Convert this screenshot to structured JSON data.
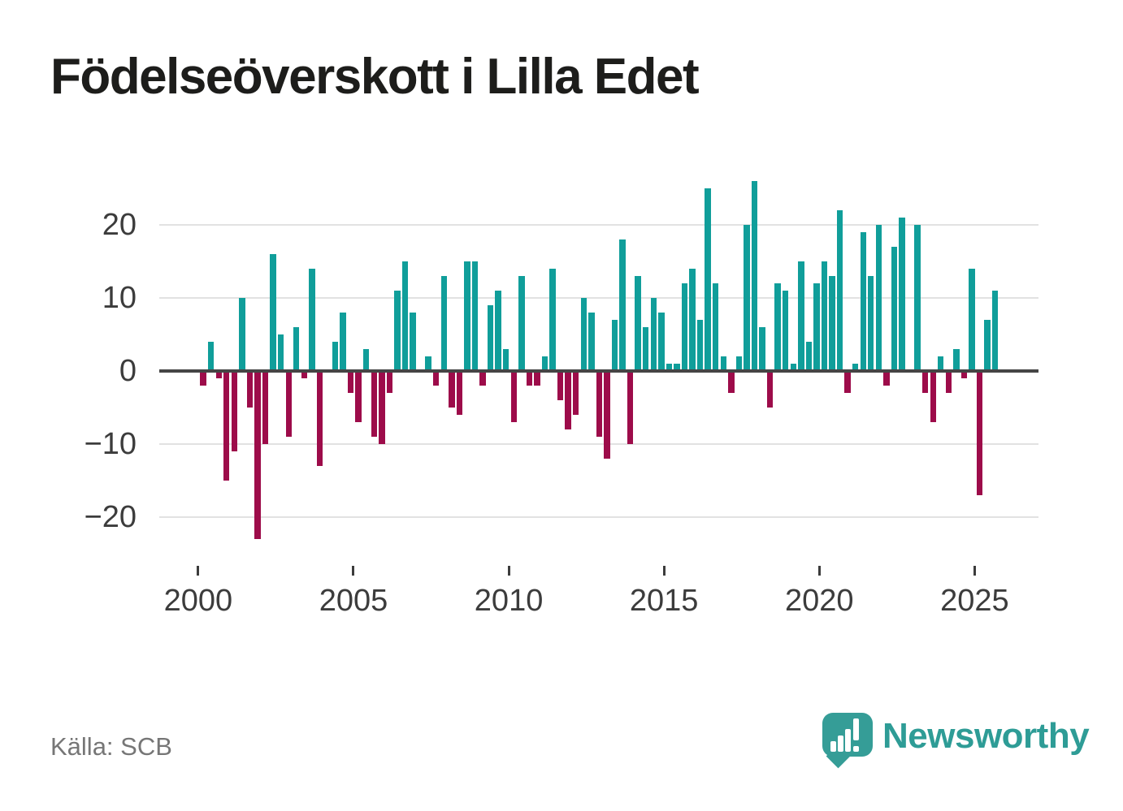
{
  "title": "Födelseöverskott i Lilla Edet",
  "source": {
    "label": "Källa: SCB"
  },
  "logo": {
    "text": "Newsworthy",
    "text_color": "#2e9c96",
    "bubble_color": "#359d97"
  },
  "chart_data": {
    "type": "bar",
    "title": "Födelseöverskott i Lilla Edet",
    "frequency": "quarterly",
    "x_start": "2000-Q1",
    "x_end": "2025-Q3",
    "values": [
      -2,
      4,
      -1,
      -15,
      -11,
      10,
      -5,
      -23,
      -10,
      16,
      5,
      -9,
      6,
      -1,
      14,
      -13,
      0,
      4,
      8,
      -3,
      -7,
      3,
      -9,
      -10,
      -3,
      11,
      15,
      8,
      0,
      2,
      -2,
      13,
      -5,
      -6,
      15,
      15,
      -2,
      9,
      11,
      3,
      -7,
      13,
      -2,
      -2,
      2,
      14,
      -4,
      -8,
      -6,
      10,
      8,
      -9,
      -12,
      7,
      18,
      -10,
      13,
      6,
      10,
      8,
      1,
      1,
      12,
      14,
      7,
      25,
      12,
      2,
      -3,
      2,
      20,
      26,
      6,
      -5,
      12,
      11,
      1,
      15,
      4,
      12,
      15,
      13,
      22,
      -3,
      1,
      19,
      13,
      20,
      -2,
      17,
      21,
      0,
      20,
      -3,
      -7,
      2,
      -3,
      3,
      -1,
      14,
      -17,
      7,
      11
    ],
    "yticks": [
      20,
      10,
      0,
      -10,
      -20
    ],
    "xticks": [
      2000,
      2005,
      2010,
      2015,
      2020,
      2025
    ],
    "ylim": [
      -25,
      28
    ],
    "grid": "horizontal",
    "legend": "none",
    "positive_color": "#109e9a",
    "negative_color": "#9d0c4a"
  }
}
